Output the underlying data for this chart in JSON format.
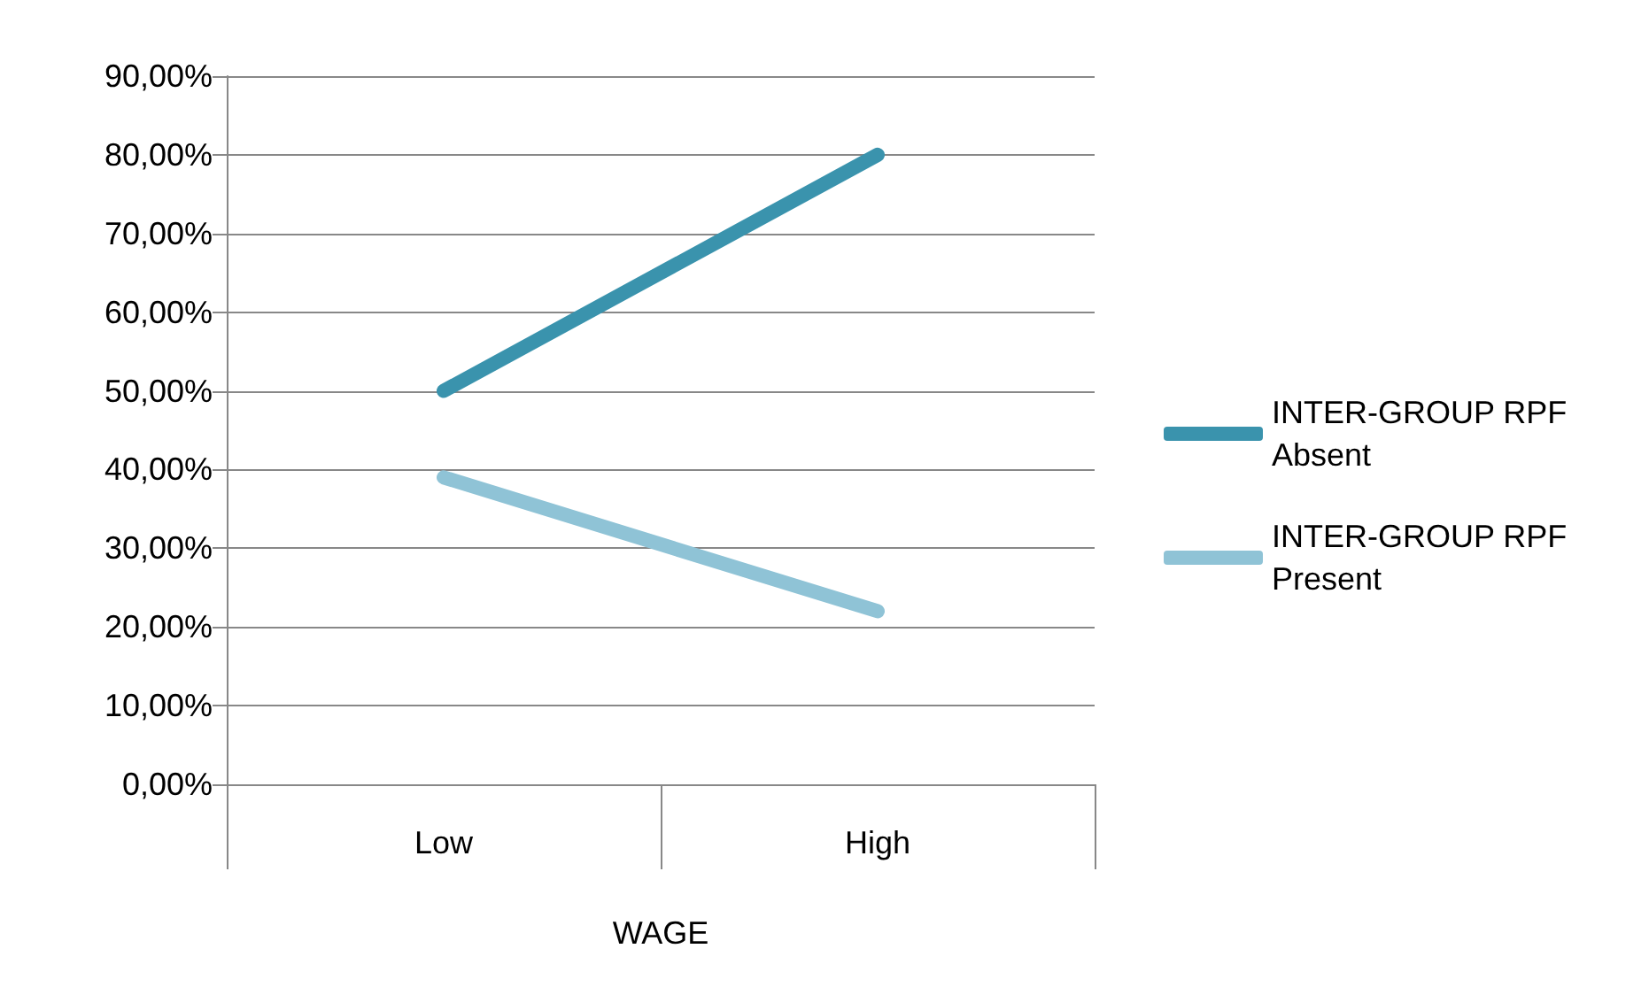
{
  "chart_data": {
    "type": "line",
    "xlabel": "WAGE",
    "categories": [
      "Low",
      "High"
    ],
    "series": [
      {
        "name": "INTER-GROUP RPF Absent",
        "color": "#3a93ad",
        "values": [
          50,
          80
        ]
      },
      {
        "name": "INTER-GROUP RPF Present",
        "color": "#8fc3d6",
        "values": [
          39,
          22
        ]
      }
    ],
    "ylim": [
      0,
      90
    ],
    "yticks": [
      {
        "value": 0,
        "label": "0,00%"
      },
      {
        "value": 10,
        "label": "10,00%"
      },
      {
        "value": 20,
        "label": "20,00%"
      },
      {
        "value": 30,
        "label": "30,00%"
      },
      {
        "value": 40,
        "label": "40,00%"
      },
      {
        "value": 50,
        "label": "50,00%"
      },
      {
        "value": 60,
        "label": "60,00%"
      },
      {
        "value": 70,
        "label": "70,00%"
      },
      {
        "value": 80,
        "label": "80,00%"
      },
      {
        "value": 90,
        "label": "90,00%"
      }
    ],
    "grid": "y",
    "legend": "right",
    "marker": "none",
    "line_style": "solid"
  }
}
